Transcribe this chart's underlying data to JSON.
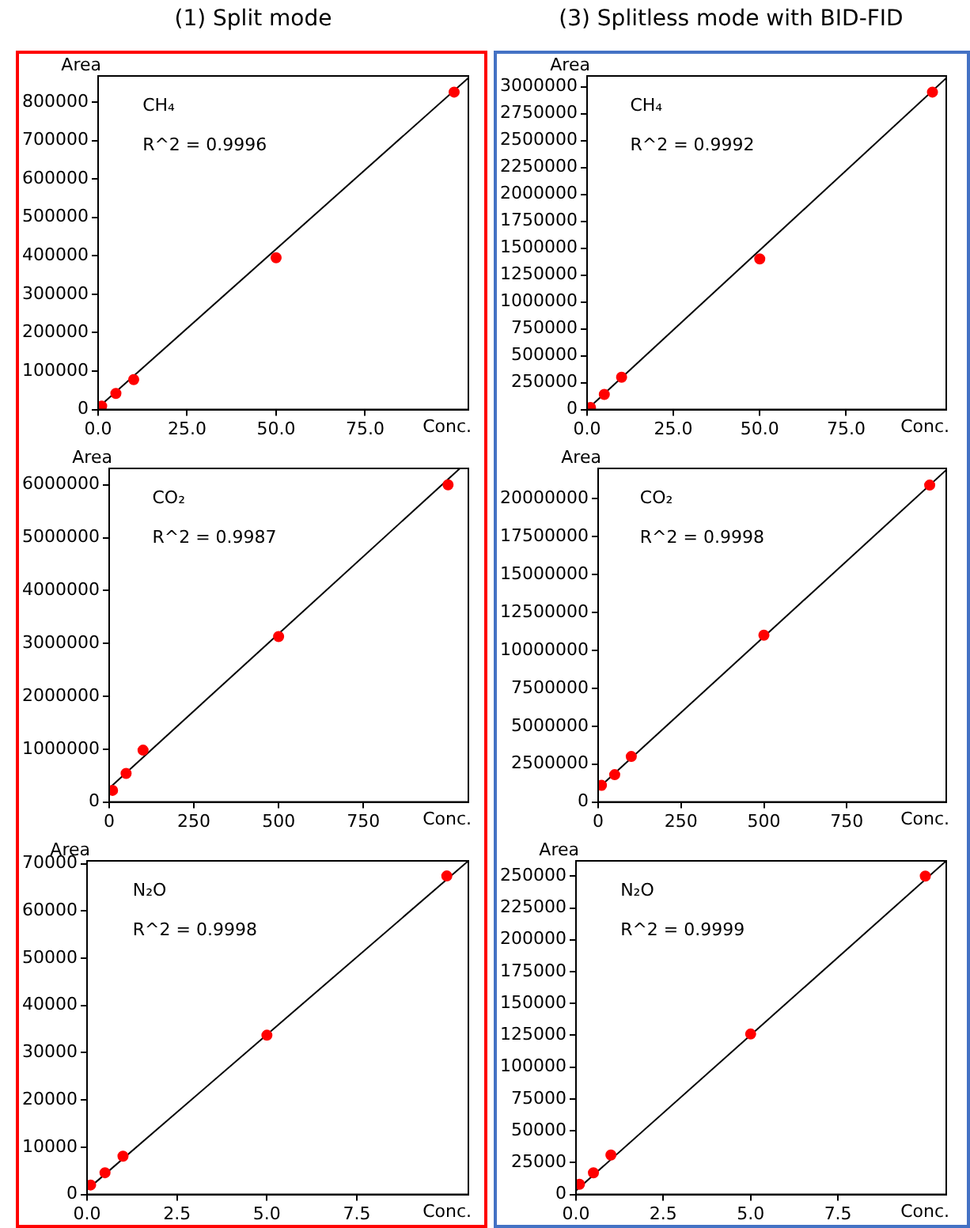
{
  "chart_data": [
    {
      "type": "scatter",
      "title": "(1) Split mode",
      "xlabel": "Conc.",
      "ylabel": "Area",
      "annotations": [
        "CH₄",
        "R^2 = 0.9996"
      ],
      "xlim": [
        0,
        104
      ],
      "ylim": [
        0,
        868000
      ],
      "xticks": [
        {
          "value": 0,
          "label": "0.0"
        },
        {
          "value": 25,
          "label": "25.0"
        },
        {
          "value": 50,
          "label": "50.0"
        },
        {
          "value": 75,
          "label": "75.0"
        }
      ],
      "yticks": [
        0,
        100000,
        200000,
        300000,
        400000,
        500000,
        600000,
        700000,
        800000
      ],
      "grid": false,
      "legend": false,
      "series": [
        {
          "marker": "circle",
          "color": "#ff0000",
          "x": [
            1,
            5,
            10,
            50,
            100
          ],
          "values": [
            9000,
            42000,
            78000,
            395000,
            826000
          ]
        },
        {
          "type": "line",
          "marker": "none",
          "color": "#000000",
          "x": [
            0,
            104
          ],
          "values": [
            5000,
            863000
          ]
        }
      ]
    },
    {
      "type": "scatter",
      "title": "(3) Splitless mode with BID-FID",
      "xlabel": "Conc.",
      "ylabel": "Area",
      "annotations": [
        "CH₄",
        "R^2 = 0.9992"
      ],
      "xlim": [
        0,
        104
      ],
      "ylim": [
        0,
        3100000
      ],
      "xticks": [
        {
          "value": 0,
          "label": "0.0"
        },
        {
          "value": 25,
          "label": "25.0"
        },
        {
          "value": 50,
          "label": "50.0"
        },
        {
          "value": 75,
          "label": "75.0"
        }
      ],
      "yticks": [
        0,
        250000,
        500000,
        750000,
        1000000,
        1250000,
        1500000,
        1750000,
        2000000,
        2250000,
        2500000,
        2750000,
        3000000
      ],
      "grid": false,
      "legend": false,
      "series": [
        {
          "marker": "circle",
          "color": "#ff0000",
          "x": [
            1,
            5,
            10,
            50,
            100
          ],
          "values": [
            20000,
            140000,
            300000,
            1400000,
            2950000
          ]
        },
        {
          "type": "line",
          "marker": "none",
          "color": "#000000",
          "x": [
            0,
            104
          ],
          "values": [
            0,
            3080000
          ]
        }
      ]
    },
    {
      "type": "scatter",
      "xlabel": "Conc.",
      "ylabel": "Area",
      "annotations": [
        "CO₂",
        "R^2 = 0.9987"
      ],
      "xlim": [
        0,
        1060
      ],
      "ylim": [
        0,
        6310000
      ],
      "xticks": [
        0,
        250,
        500,
        750
      ],
      "yticks": [
        0,
        1000000,
        2000000,
        3000000,
        4000000,
        5000000,
        6000000
      ],
      "grid": false,
      "legend": false,
      "series": [
        {
          "marker": "circle",
          "color": "#ff0000",
          "x": [
            10,
            50,
            100,
            500,
            1000
          ],
          "values": [
            220000,
            540000,
            980000,
            3130000,
            6000000
          ]
        },
        {
          "type": "line",
          "marker": "none",
          "color": "#000000",
          "x": [
            0,
            1035
          ],
          "values": [
            260000,
            6310000
          ]
        }
      ]
    },
    {
      "type": "scatter",
      "xlabel": "Conc.",
      "ylabel": "Area",
      "annotations": [
        "CO₂",
        "R^2 = 0.9998"
      ],
      "xlim": [
        0,
        1050
      ],
      "ylim": [
        0,
        22000000
      ],
      "xticks": [
        0,
        250,
        500,
        750
      ],
      "yticks": [
        0,
        2500000,
        5000000,
        7500000,
        10000000,
        12500000,
        15000000,
        17500000,
        20000000
      ],
      "grid": false,
      "legend": false,
      "series": [
        {
          "marker": "circle",
          "color": "#ff0000",
          "x": [
            10,
            50,
            100,
            500,
            1000
          ],
          "values": [
            1100000,
            1800000,
            3000000,
            11000000,
            20900000
          ]
        },
        {
          "type": "line",
          "marker": "none",
          "color": "#000000",
          "x": [
            0,
            1050
          ],
          "values": [
            900000,
            21900000
          ]
        }
      ]
    },
    {
      "type": "scatter",
      "xlabel": "Conc.",
      "ylabel": "Area",
      "annotations": [
        "N₂O",
        "R^2 = 0.9998"
      ],
      "xlim": [
        0,
        10.6
      ],
      "ylim": [
        0,
        70600
      ],
      "xticks": [
        {
          "value": 0,
          "label": "0.0"
        },
        {
          "value": 2.5,
          "label": "2.5"
        },
        {
          "value": 5,
          "label": "5.0"
        },
        {
          "value": 7.5,
          "label": "7.5"
        }
      ],
      "yticks": [
        0,
        10000,
        20000,
        30000,
        40000,
        50000,
        60000,
        70000
      ],
      "grid": false,
      "legend": false,
      "series": [
        {
          "marker": "circle",
          "color": "#ff0000",
          "x": [
            0.1,
            0.5,
            1,
            5,
            10
          ],
          "values": [
            2000,
            4600,
            8100,
            33700,
            67400
          ]
        },
        {
          "type": "line",
          "marker": "none",
          "color": "#000000",
          "x": [
            0,
            10.6
          ],
          "values": [
            1000,
            70600
          ]
        }
      ]
    },
    {
      "type": "scatter",
      "xlabel": "Conc.",
      "ylabel": "Area",
      "annotations": [
        "N₂O",
        "R^2 = 0.9999"
      ],
      "xlim": [
        0,
        10.6
      ],
      "ylim": [
        0,
        262000
      ],
      "xticks": [
        {
          "value": 0,
          "label": "0.0"
        },
        {
          "value": 2.5,
          "label": "2.5"
        },
        {
          "value": 5,
          "label": "5.0"
        },
        {
          "value": 7.5,
          "label": "7.5"
        }
      ],
      "yticks": [
        0,
        25000,
        50000,
        75000,
        100000,
        125000,
        150000,
        175000,
        200000,
        225000,
        250000
      ],
      "grid": false,
      "legend": false,
      "series": [
        {
          "marker": "circle",
          "color": "#ff0000",
          "x": [
            0.1,
            0.5,
            1,
            5,
            10
          ],
          "values": [
            8000,
            17000,
            31000,
            126000,
            250000
          ]
        },
        {
          "type": "line",
          "marker": "none",
          "color": "#000000",
          "x": [
            0,
            10.6
          ],
          "values": [
            3000,
            262000
          ]
        }
      ]
    }
  ]
}
